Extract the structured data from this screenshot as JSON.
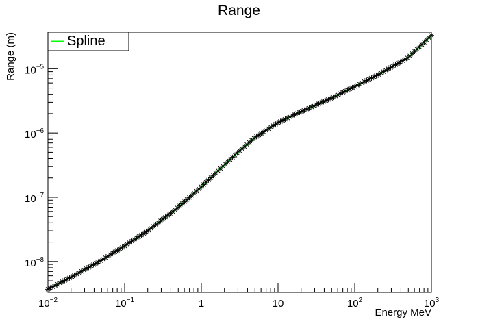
{
  "chart_data": {
    "type": "line",
    "title": "Range",
    "xlabel": "Energy MeV",
    "ylabel": "Range (m)",
    "x_scale": "log",
    "y_scale": "log",
    "xlim": [
      0.01,
      1000
    ],
    "ylim": [
      3.3e-09,
      3.7e-05
    ],
    "grid": false,
    "legend": {
      "placement": "top-left",
      "entries": [
        "Spline"
      ]
    },
    "x_ticks": [
      {
        "value": 0.01,
        "base": "10",
        "exp": "−2"
      },
      {
        "value": 0.1,
        "base": "10",
        "exp": "−1"
      },
      {
        "value": 1,
        "base": "1",
        "exp": ""
      },
      {
        "value": 10,
        "base": "10",
        "exp": ""
      },
      {
        "value": 100,
        "base": "10",
        "exp": "2"
      },
      {
        "value": 1000,
        "base": "10",
        "exp": "3"
      }
    ],
    "y_ticks": [
      {
        "value": 1e-08,
        "base": "10",
        "exp": "−8"
      },
      {
        "value": 1e-07,
        "base": "10",
        "exp": "−7"
      },
      {
        "value": 1e-06,
        "base": "10",
        "exp": "−6"
      },
      {
        "value": 1e-05,
        "base": "10",
        "exp": "−5"
      }
    ],
    "series": [
      {
        "name": "Spline",
        "color": "#00ff00",
        "marker": "star",
        "marker_color": "#000000",
        "x": [
          0.01,
          0.02,
          0.05,
          0.1,
          0.2,
          0.5,
          1,
          2,
          3,
          5,
          10,
          20,
          50,
          100,
          200,
          500,
          1000
        ],
        "y": [
          3.7e-09,
          5.7e-09,
          1.05e-08,
          1.75e-08,
          3e-08,
          7e-08,
          1.45e-07,
          3.2e-07,
          5e-07,
          8.5e-07,
          1.45e-06,
          2.15e-06,
          3.5e-06,
          5.3e-06,
          8e-06,
          1.5e-05,
          3.3e-05
        ]
      }
    ]
  }
}
